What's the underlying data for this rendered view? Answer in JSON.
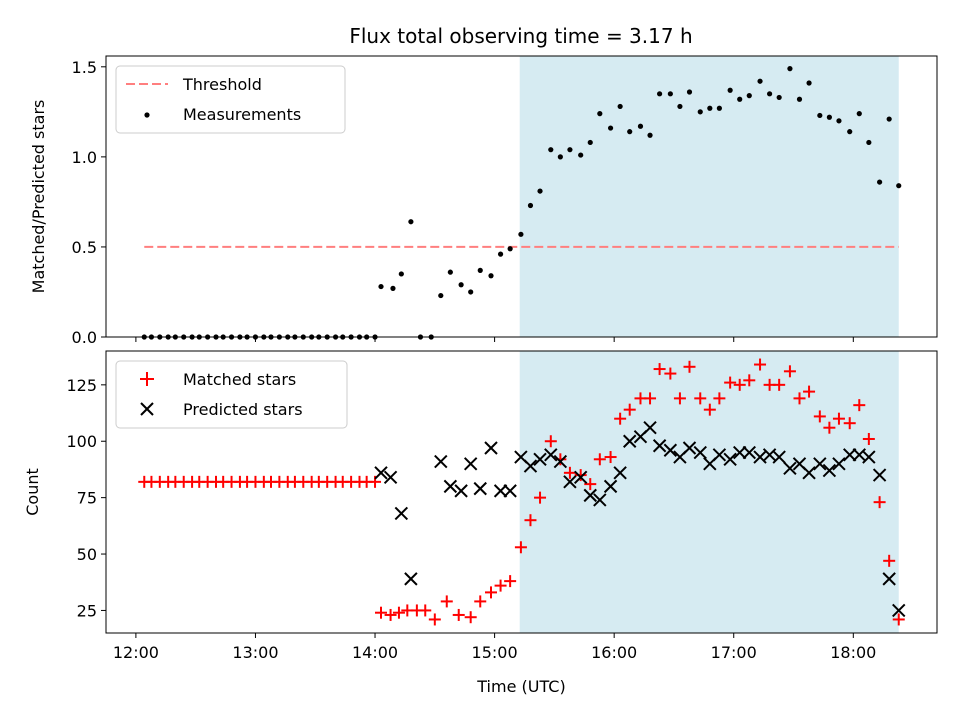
{
  "chart_data": {
    "title": "Flux total observing time = 3.17 h",
    "xlabel": "Time (UTC)",
    "x_ticks": [
      "12:00",
      "13:00",
      "14:00",
      "15:00",
      "16:00",
      "17:00",
      "18:00"
    ],
    "x_range_hours": [
      11.75,
      18.7
    ],
    "shaded_interval_hours": [
      15.21,
      18.38
    ],
    "colors": {
      "threshold": "#ff7f7f",
      "measurements": "#000000",
      "matched": "#ff0000",
      "predicted": "#000000",
      "shade": "#add8e6"
    },
    "panels": [
      {
        "type": "scatter",
        "ylabel": "Matched/Predicted stars",
        "ylim": [
          0,
          1.56
        ],
        "y_ticks": [
          "0.0",
          "0.5",
          "1.0",
          "1.5"
        ],
        "legend_position": "upper-left",
        "legend": [
          "Threshold",
          "Measurements"
        ],
        "threshold": {
          "name": "Threshold",
          "value": 0.5,
          "x_start": 12.07,
          "x_end": 18.38
        },
        "measurements": {
          "name": "Measurements",
          "x": [
            12.07,
            12.13,
            12.2,
            12.27,
            12.33,
            12.4,
            12.47,
            12.53,
            12.6,
            12.67,
            12.73,
            12.8,
            12.87,
            12.93,
            13.0,
            13.07,
            13.13,
            13.2,
            13.27,
            13.33,
            13.4,
            13.47,
            13.53,
            13.6,
            13.67,
            13.73,
            13.8,
            13.87,
            13.93,
            14.0,
            14.05,
            14.15,
            14.22,
            14.3,
            14.38,
            14.47,
            14.55,
            14.63,
            14.72,
            14.8,
            14.88,
            14.97,
            15.05,
            15.13,
            15.22,
            15.3,
            15.38,
            15.47,
            15.55,
            15.63,
            15.72,
            15.8,
            15.88,
            15.97,
            16.05,
            16.13,
            16.22,
            16.3,
            16.38,
            16.47,
            16.55,
            16.63,
            16.72,
            16.8,
            16.88,
            16.97,
            17.05,
            17.13,
            17.22,
            17.3,
            17.38,
            17.47,
            17.55,
            17.63,
            17.72,
            17.8,
            17.88,
            17.97,
            18.05,
            18.13,
            18.22,
            18.3,
            18.38
          ],
          "y": [
            0,
            0,
            0,
            0,
            0,
            0,
            0,
            0,
            0,
            0,
            0,
            0,
            0,
            0,
            0,
            0,
            0,
            0,
            0,
            0,
            0,
            0,
            0,
            0,
            0,
            0,
            0,
            0,
            0,
            0,
            0.28,
            0.27,
            0.35,
            0.64,
            0,
            0,
            0.23,
            0.36,
            0.29,
            0.25,
            0.37,
            0.34,
            0.46,
            0.49,
            0.57,
            0.73,
            0.81,
            1.04,
            1.0,
            1.04,
            1.01,
            1.08,
            1.24,
            1.16,
            1.28,
            1.14,
            1.17,
            1.12,
            1.35,
            1.35,
            1.28,
            1.36,
            1.25,
            1.27,
            1.27,
            1.37,
            1.32,
            1.34,
            1.42,
            1.35,
            1.33,
            1.49,
            1.32,
            1.41,
            1.23,
            1.22,
            1.2,
            1.14,
            1.24,
            1.08,
            0.86,
            1.21,
            0.84
          ]
        }
      },
      {
        "type": "scatter",
        "ylabel": "Count",
        "ylim": [
          15,
          140
        ],
        "y_ticks": [
          "25",
          "50",
          "75",
          "100",
          "125"
        ],
        "legend_position": "upper-left",
        "legend": [
          "Matched stars",
          "Predicted stars"
        ],
        "matched": {
          "name": "Matched stars",
          "x": [
            12.07,
            12.13,
            12.2,
            12.27,
            12.33,
            12.4,
            12.47,
            12.53,
            12.6,
            12.67,
            12.73,
            12.8,
            12.87,
            12.93,
            13.0,
            13.07,
            13.13,
            13.2,
            13.27,
            13.33,
            13.4,
            13.47,
            13.53,
            13.6,
            13.67,
            13.73,
            13.8,
            13.87,
            13.93,
            14.0,
            14.05,
            14.13,
            14.2,
            14.27,
            14.35,
            14.42,
            14.5,
            14.6,
            14.7,
            14.8,
            14.88,
            14.97,
            15.05,
            15.13,
            15.22,
            15.3,
            15.38,
            15.47,
            15.55,
            15.63,
            15.72,
            15.8,
            15.88,
            15.97,
            16.05,
            16.13,
            16.22,
            16.3,
            16.38,
            16.47,
            16.55,
            16.63,
            16.72,
            16.8,
            16.88,
            16.97,
            17.05,
            17.13,
            17.22,
            17.3,
            17.38,
            17.47,
            17.55,
            17.63,
            17.72,
            17.8,
            17.88,
            17.97,
            18.05,
            18.13,
            18.22,
            18.3,
            18.38
          ],
          "y": [
            82,
            82,
            82,
            82,
            82,
            82,
            82,
            82,
            82,
            82,
            82,
            82,
            82,
            82,
            82,
            82,
            82,
            82,
            82,
            82,
            82,
            82,
            82,
            82,
            82,
            82,
            82,
            82,
            82,
            82,
            24,
            23,
            24,
            25,
            25,
            25,
            21,
            29,
            23,
            22,
            29,
            33,
            36,
            38,
            53,
            65,
            75,
            100,
            92,
            86,
            85,
            81,
            92,
            93,
            110,
            114,
            119,
            119,
            132,
            130,
            119,
            133,
            119,
            114,
            119,
            126,
            125,
            127,
            134,
            125,
            125,
            131,
            119,
            122,
            111,
            106,
            110,
            108,
            116,
            101,
            73,
            47,
            21
          ]
        },
        "predicted": {
          "name": "Predicted stars",
          "x": [
            14.05,
            14.13,
            14.22,
            14.3,
            14.55,
            14.63,
            14.72,
            14.8,
            14.88,
            14.97,
            15.05,
            15.13,
            15.22,
            15.3,
            15.38,
            15.47,
            15.55,
            15.63,
            15.72,
            15.8,
            15.88,
            15.97,
            16.05,
            16.13,
            16.22,
            16.3,
            16.38,
            16.47,
            16.55,
            16.63,
            16.72,
            16.8,
            16.88,
            16.97,
            17.05,
            17.13,
            17.22,
            17.3,
            17.38,
            17.47,
            17.55,
            17.63,
            17.72,
            17.8,
            17.88,
            17.97,
            18.05,
            18.13,
            18.22,
            18.3,
            18.38
          ],
          "y": [
            86,
            84,
            68,
            39,
            91,
            80,
            78,
            90,
            79,
            97,
            78,
            78,
            93,
            89,
            92,
            94,
            91,
            82,
            84,
            76,
            74,
            80,
            86,
            100,
            102,
            106,
            98,
            96,
            93,
            97,
            95,
            90,
            94,
            92,
            95,
            95,
            93,
            94,
            93,
            88,
            90,
            86,
            90,
            87,
            90,
            94,
            94,
            93,
            85,
            39,
            25
          ]
        }
      }
    ]
  }
}
